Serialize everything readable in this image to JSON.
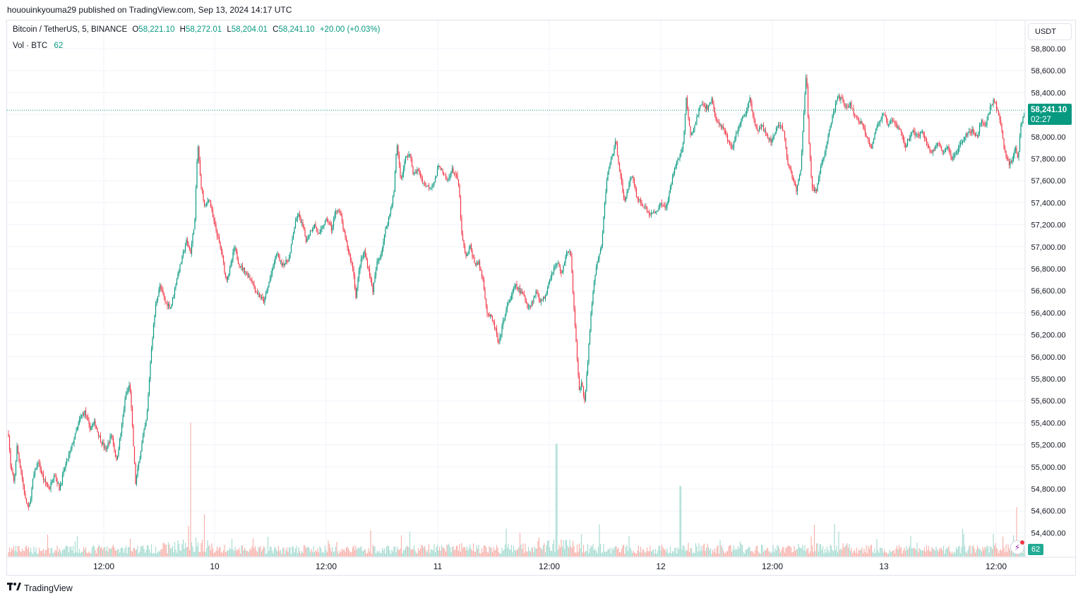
{
  "header": {
    "published": "hououinkyouma29 published on TradingView.com, Sep 13, 2024 14:17 UTC"
  },
  "legend": {
    "symbol": "Bitcoin / TetherUS, 5, BINANCE",
    "open_label": "O",
    "open": "58,221.10",
    "high_label": "H",
    "high": "58,272.01",
    "low_label": "L",
    "low": "58,204.01",
    "close_label": "C",
    "close": "58,241.10",
    "change": "+20.00 (+0.03%)",
    "vol_label": "Vol · BTC",
    "vol_value": "62"
  },
  "currency_button": "USDT",
  "price_tag": {
    "price": "58,241.10",
    "countdown": "02:27"
  },
  "volume_tag": "62",
  "brand": "TradingView",
  "colors": {
    "up": "#089981",
    "down": "#f23645",
    "vol_up": "#a8dcd3",
    "vol_down": "#f7b3ae",
    "grid": "#f0f3fa"
  },
  "chart_data": {
    "type": "candlestick",
    "symbol": "BTC/USDT",
    "interval": "5",
    "ylim": [
      54250,
      58950
    ],
    "y_ticks": [
      "58,800.00",
      "58,600.00",
      "58,400.00",
      "58,200.00",
      "58,000.00",
      "57,800.00",
      "57,600.00",
      "57,400.00",
      "57,200.00",
      "57,000.00",
      "56,800.00",
      "56,600.00",
      "56,400.00",
      "56,200.00",
      "56,000.00",
      "55,800.00",
      "55,600.00",
      "55,400.00",
      "55,200.00",
      "55,000.00",
      "54,800.00",
      "54,600.00",
      "54,400.00"
    ],
    "x_ticks": [
      "12:00",
      "10",
      "12:00",
      "11",
      "12:00",
      "12",
      "12:00",
      "13",
      "12:00"
    ],
    "price_path": [
      [
        0,
        55300
      ],
      [
        3,
        55000
      ],
      [
        8,
        54850
      ],
      [
        12,
        55180
      ],
      [
        18,
        54950
      ],
      [
        24,
        54700
      ],
      [
        29,
        54610
      ],
      [
        35,
        54900
      ],
      [
        42,
        55050
      ],
      [
        50,
        54880
      ],
      [
        58,
        54800
      ],
      [
        65,
        54950
      ],
      [
        72,
        54800
      ],
      [
        80,
        55000
      ],
      [
        88,
        55150
      ],
      [
        95,
        55300
      ],
      [
        102,
        55450
      ],
      [
        108,
        55500
      ],
      [
        115,
        55350
      ],
      [
        122,
        55400
      ],
      [
        130,
        55250
      ],
      [
        138,
        55150
      ],
      [
        146,
        55300
      ],
      [
        153,
        55050
      ],
      [
        160,
        55350
      ],
      [
        166,
        55650
      ],
      [
        172,
        55750
      ],
      [
        176,
        55300
      ],
      [
        180,
        54850
      ],
      [
        185,
        55050
      ],
      [
        190,
        55250
      ],
      [
        196,
        55450
      ],
      [
        202,
        56050
      ],
      [
        208,
        56450
      ],
      [
        214,
        56650
      ],
      [
        222,
        56500
      ],
      [
        230,
        56450
      ],
      [
        238,
        56700
      ],
      [
        246,
        56900
      ],
      [
        252,
        57050
      ],
      [
        258,
        56950
      ],
      [
        264,
        57250
      ],
      [
        268,
        57950
      ],
      [
        272,
        57600
      ],
      [
        278,
        57350
      ],
      [
        284,
        57450
      ],
      [
        290,
        57250
      ],
      [
        296,
        57100
      ],
      [
        302,
        56950
      ],
      [
        308,
        56700
      ],
      [
        314,
        56800
      ],
      [
        320,
        57000
      ],
      [
        326,
        56850
      ],
      [
        332,
        56800
      ],
      [
        338,
        56750
      ],
      [
        344,
        56700
      ],
      [
        350,
        56600
      ],
      [
        356,
        56550
      ],
      [
        362,
        56500
      ],
      [
        368,
        56650
      ],
      [
        374,
        56800
      ],
      [
        380,
        56950
      ],
      [
        386,
        56850
      ],
      [
        392,
        56850
      ],
      [
        398,
        56900
      ],
      [
        404,
        57150
      ],
      [
        410,
        57300
      ],
      [
        416,
        57200
      ],
      [
        422,
        57050
      ],
      [
        428,
        57150
      ],
      [
        434,
        57200
      ],
      [
        440,
        57100
      ],
      [
        446,
        57200
      ],
      [
        452,
        57250
      ],
      [
        458,
        57150
      ],
      [
        464,
        57350
      ],
      [
        470,
        57300
      ],
      [
        476,
        57100
      ],
      [
        482,
        56950
      ],
      [
        488,
        56800
      ],
      [
        492,
        56550
      ],
      [
        498,
        56850
      ],
      [
        504,
        56950
      ],
      [
        510,
        56800
      ],
      [
        516,
        56600
      ],
      [
        522,
        56850
      ],
      [
        528,
        56950
      ],
      [
        534,
        57150
      ],
      [
        540,
        57300
      ],
      [
        546,
        57500
      ],
      [
        550,
        57950
      ],
      [
        556,
        57600
      ],
      [
        562,
        57800
      ],
      [
        568,
        57850
      ],
      [
        574,
        57650
      ],
      [
        580,
        57700
      ],
      [
        586,
        57600
      ],
      [
        592,
        57550
      ],
      [
        598,
        57550
      ],
      [
        604,
        57600
      ],
      [
        610,
        57750
      ],
      [
        616,
        57650
      ],
      [
        622,
        57600
      ],
      [
        628,
        57700
      ],
      [
        634,
        57650
      ],
      [
        638,
        57550
      ],
      [
        642,
        57100
      ],
      [
        648,
        56900
      ],
      [
        654,
        57000
      ],
      [
        660,
        56850
      ],
      [
        666,
        56850
      ],
      [
        672,
        56700
      ],
      [
        678,
        56400
      ],
      [
        684,
        56350
      ],
      [
        690,
        56250
      ],
      [
        694,
        56100
      ],
      [
        700,
        56300
      ],
      [
        706,
        56450
      ],
      [
        712,
        56550
      ],
      [
        718,
        56650
      ],
      [
        724,
        56600
      ],
      [
        730,
        56550
      ],
      [
        736,
        56450
      ],
      [
        742,
        56500
      ],
      [
        748,
        56600
      ],
      [
        754,
        56500
      ],
      [
        760,
        56550
      ],
      [
        766,
        56700
      ],
      [
        772,
        56800
      ],
      [
        778,
        56850
      ],
      [
        784,
        56750
      ],
      [
        790,
        56950
      ],
      [
        796,
        56950
      ],
      [
        800,
        56550
      ],
      [
        804,
        56150
      ],
      [
        808,
        55700
      ],
      [
        812,
        55750
      ],
      [
        816,
        55600
      ],
      [
        820,
        55900
      ],
      [
        824,
        56300
      ],
      [
        828,
        56600
      ],
      [
        832,
        56800
      ],
      [
        836,
        56900
      ],
      [
        840,
        57000
      ],
      [
        844,
        57350
      ],
      [
        848,
        57650
      ],
      [
        854,
        57800
      ],
      [
        860,
        57950
      ],
      [
        866,
        57700
      ],
      [
        872,
        57400
      ],
      [
        878,
        57550
      ],
      [
        884,
        57650
      ],
      [
        890,
        57450
      ],
      [
        896,
        57400
      ],
      [
        902,
        57350
      ],
      [
        908,
        57300
      ],
      [
        914,
        57300
      ],
      [
        920,
        57350
      ],
      [
        926,
        57400
      ],
      [
        932,
        57350
      ],
      [
        938,
        57550
      ],
      [
        944,
        57750
      ],
      [
        950,
        57800
      ],
      [
        956,
        57950
      ],
      [
        960,
        58350
      ],
      [
        966,
        58000
      ],
      [
        972,
        58100
      ],
      [
        978,
        58250
      ],
      [
        984,
        58300
      ],
      [
        990,
        58250
      ],
      [
        996,
        58350
      ],
      [
        1002,
        58150
      ],
      [
        1008,
        58100
      ],
      [
        1014,
        58050
      ],
      [
        1020,
        57950
      ],
      [
        1026,
        57900
      ],
      [
        1032,
        58050
      ],
      [
        1038,
        58150
      ],
      [
        1044,
        58200
      ],
      [
        1050,
        58350
      ],
      [
        1056,
        58150
      ],
      [
        1062,
        58050
      ],
      [
        1068,
        58100
      ],
      [
        1074,
        58000
      ],
      [
        1080,
        57950
      ],
      [
        1086,
        58050
      ],
      [
        1092,
        58100
      ],
      [
        1098,
        58050
      ],
      [
        1104,
        57750
      ],
      [
        1110,
        57650
      ],
      [
        1116,
        57500
      ],
      [
        1122,
        57700
      ],
      [
        1126,
        58150
      ],
      [
        1130,
        58600
      ],
      [
        1134,
        57950
      ],
      [
        1138,
        57550
      ],
      [
        1144,
        57500
      ],
      [
        1150,
        57700
      ],
      [
        1156,
        57850
      ],
      [
        1162,
        58050
      ],
      [
        1168,
        58200
      ],
      [
        1174,
        58350
      ],
      [
        1180,
        58350
      ],
      [
        1186,
        58250
      ],
      [
        1192,
        58300
      ],
      [
        1198,
        58200
      ],
      [
        1204,
        58150
      ],
      [
        1210,
        58100
      ],
      [
        1216,
        58000
      ],
      [
        1222,
        57900
      ],
      [
        1228,
        58050
      ],
      [
        1234,
        58150
      ],
      [
        1240,
        58200
      ],
      [
        1246,
        58100
      ],
      [
        1252,
        58150
      ],
      [
        1258,
        58100
      ],
      [
        1264,
        58050
      ],
      [
        1270,
        57900
      ],
      [
        1276,
        58000
      ],
      [
        1282,
        58050
      ],
      [
        1288,
        58000
      ],
      [
        1294,
        58050
      ],
      [
        1300,
        57950
      ],
      [
        1306,
        57850
      ],
      [
        1312,
        57900
      ],
      [
        1318,
        57950
      ],
      [
        1324,
        57850
      ],
      [
        1330,
        57900
      ],
      [
        1336,
        57800
      ],
      [
        1342,
        57850
      ],
      [
        1348,
        57950
      ],
      [
        1354,
        58000
      ],
      [
        1360,
        58050
      ],
      [
        1366,
        58050
      ],
      [
        1372,
        58000
      ],
      [
        1378,
        58150
      ],
      [
        1384,
        58100
      ],
      [
        1390,
        58250
      ],
      [
        1396,
        58350
      ],
      [
        1402,
        58200
      ],
      [
        1406,
        58100
      ],
      [
        1410,
        57900
      ],
      [
        1414,
        57800
      ],
      [
        1418,
        57750
      ],
      [
        1422,
        57800
      ],
      [
        1426,
        57900
      ],
      [
        1430,
        57800
      ],
      [
        1434,
        58100
      ],
      [
        1440,
        58241
      ]
    ],
    "volume_profile": [
      [
        0,
        0.3
      ],
      [
        40,
        0.25
      ],
      [
        100,
        0.3
      ],
      [
        170,
        0.4
      ],
      [
        200,
        0.35
      ],
      [
        268,
        1.0
      ],
      [
        300,
        0.35
      ],
      [
        350,
        0.25
      ],
      [
        400,
        0.3
      ],
      [
        450,
        0.3
      ],
      [
        500,
        0.35
      ],
      [
        560,
        0.3
      ],
      [
        640,
        0.5
      ],
      [
        700,
        0.35
      ],
      [
        786,
        0.9
      ],
      [
        800,
        0.7
      ],
      [
        840,
        0.4
      ],
      [
        900,
        0.3
      ],
      [
        962,
        0.55
      ],
      [
        1000,
        0.35
      ],
      [
        1100,
        0.4
      ],
      [
        1130,
        0.45
      ],
      [
        1200,
        0.45
      ],
      [
        1250,
        0.35
      ],
      [
        1300,
        0.3
      ],
      [
        1400,
        0.35
      ],
      [
        1438,
        0.45
      ]
    ],
    "last_price": 58241.1
  }
}
